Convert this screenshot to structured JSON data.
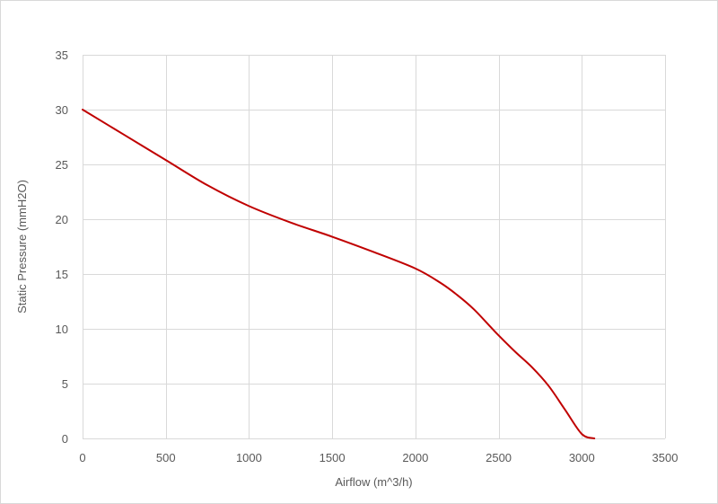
{
  "chart_data": {
    "type": "line",
    "title": "",
    "xlabel": "Airflow (m^3/h)",
    "ylabel": "Static Pressure (mmH2O)",
    "xlim": [
      0,
      3500
    ],
    "ylim": [
      0,
      35
    ],
    "xticks": [
      0,
      500,
      1000,
      1500,
      2000,
      2500,
      3000,
      3500
    ],
    "yticks": [
      0,
      5,
      10,
      15,
      20,
      25,
      30,
      35
    ],
    "grid": true,
    "legend": "none",
    "series": [
      {
        "color": "#c00000",
        "x": [
          0,
          250,
          500,
          750,
          1000,
          1250,
          1500,
          1750,
          2000,
          2150,
          2250,
          2350,
          2450,
          2500,
          2600,
          2700,
          2800,
          2900,
          3000,
          3075
        ],
        "y": [
          30,
          27.7,
          25.4,
          23.1,
          21.2,
          19.7,
          18.4,
          17.0,
          15.5,
          14.2,
          13.1,
          11.8,
          10.2,
          9.4,
          7.9,
          6.5,
          4.8,
          2.6,
          0.4,
          0
        ]
      }
    ]
  }
}
